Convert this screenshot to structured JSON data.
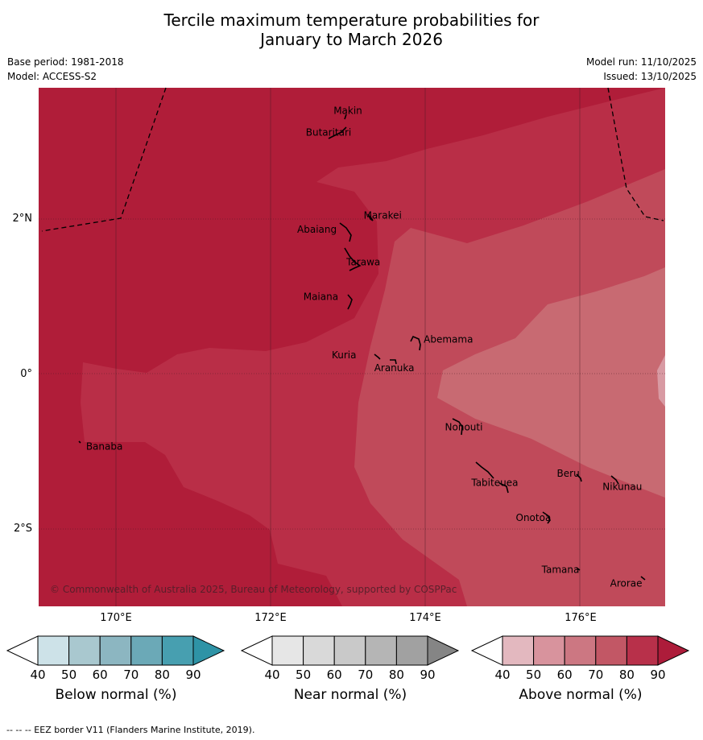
{
  "title_line1": "Tercile maximum temperature probabilities for",
  "title_line2": "January to March 2026",
  "meta": {
    "base_period": "Base period: 1981-2018",
    "model": "Model: ACCESS-S2",
    "model_run": "Model run: 11/10/2025",
    "issued": "Issued: 13/10/2025"
  },
  "axes": {
    "lon_labels": [
      "170°E",
      "172°E",
      "174°E",
      "176°E"
    ],
    "lat_labels": [
      "2°N",
      "0°",
      "2°S"
    ]
  },
  "places": [
    {
      "name": "Makin",
      "lon": 173.0,
      "lat": 3.35
    },
    {
      "name": "Butaritari",
      "lon": 172.75,
      "lat": 3.07
    },
    {
      "name": "Marakei",
      "lon": 173.45,
      "lat": 2.0
    },
    {
      "name": "Abaiang",
      "lon": 172.6,
      "lat": 1.82
    },
    {
      "name": "Tarawa",
      "lon": 173.2,
      "lat": 1.4
    },
    {
      "name": "Maiana",
      "lon": 172.65,
      "lat": 0.95
    },
    {
      "name": "Abemama",
      "lon": 174.3,
      "lat": 0.4
    },
    {
      "name": "Kuria",
      "lon": 172.95,
      "lat": 0.2
    },
    {
      "name": "Aranuka",
      "lon": 173.6,
      "lat": 0.03
    },
    {
      "name": "Nonouti",
      "lon": 174.5,
      "lat": -0.73
    },
    {
      "name": "Beru",
      "lon": 175.85,
      "lat": -1.33
    },
    {
      "name": "Nikunau",
      "lon": 176.55,
      "lat": -1.5
    },
    {
      "name": "Tabiteuea",
      "lon": 174.9,
      "lat": -1.45
    },
    {
      "name": "Onotoa",
      "lon": 175.4,
      "lat": -1.9
    },
    {
      "name": "Banaba",
      "lon": 169.85,
      "lat": -0.98
    },
    {
      "name": "Tamana",
      "lon": 175.75,
      "lat": -2.57
    },
    {
      "name": "Arorae",
      "lon": 176.6,
      "lat": -2.75
    }
  ],
  "copyright": "© Commonwealth of Australia 2025, Bureau of Meteorology, supported by COSPPac",
  "colorbars": [
    {
      "id": "below",
      "title": "Below normal (%)",
      "colors": [
        "#ffffff",
        "#cde2e8",
        "#a9c8cf",
        "#8cb6c1",
        "#6ba9b7",
        "#479fb0",
        "#2e93a6"
      ]
    },
    {
      "id": "near",
      "title": "Near normal (%)",
      "colors": [
        "#ffffff",
        "#e6e6e6",
        "#d9d9d9",
        "#c9c9c9",
        "#b5b5b5",
        "#a1a1a1",
        "#858585"
      ]
    },
    {
      "id": "above",
      "title": "Above normal (%)",
      "colors": [
        "#ffffff",
        "#e3b8bf",
        "#d8939d",
        "#cc7782",
        "#c25765",
        "#b8304a",
        "#ad1c3a"
      ]
    }
  ],
  "tick_labels": [
    "40",
    "50",
    "60",
    "70",
    "80",
    "90"
  ],
  "footnote": "-- -- -- EEZ border V11 (Flanders Marine Institute, 2019).",
  "legend_unit": "%",
  "map_colors": {
    "band90": "#b01d39",
    "band80": "#b92e47",
    "band70": "#c04a5a",
    "band60": "#c86a72",
    "band50": "#d89aa3"
  }
}
